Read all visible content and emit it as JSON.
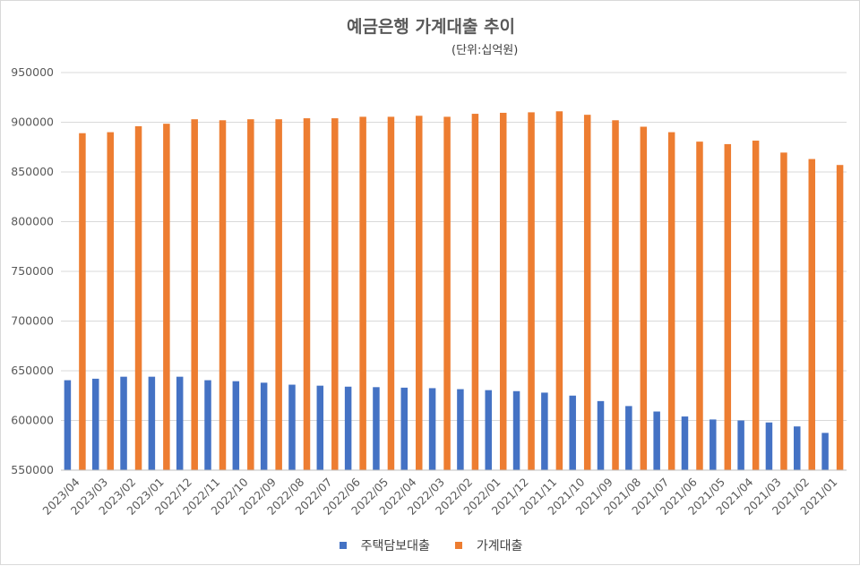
{
  "chart_data": {
    "type": "bar",
    "title": "예금은행 가계대출 추이",
    "subtitle": "(단위:십억원)",
    "categories": [
      "2023/04",
      "2023/03",
      "2023/02",
      "2023/01",
      "2022/12",
      "2022/11",
      "2022/10",
      "2022/09",
      "2022/08",
      "2022/07",
      "2022/06",
      "2022/05",
      "2022/04",
      "2022/03",
      "2022/02",
      "2022/01",
      "2021/12",
      "2021/11",
      "2021/10",
      "2021/09",
      "2021/08",
      "2021/07",
      "2021/06",
      "2021/05",
      "2021/04",
      "2021/03",
      "2021/02",
      "2021/01"
    ],
    "series": [
      {
        "name": "주택담보대출",
        "color": "#4472c4",
        "values": [
          640500,
          642000,
          644000,
          644000,
          644000,
          640500,
          639500,
          638000,
          636000,
          635000,
          634000,
          633500,
          633000,
          632500,
          631500,
          630500,
          629500,
          628000,
          625000,
          619500,
          614500,
          609000,
          604000,
          601000,
          600000,
          598000,
          594000,
          587500
        ]
      },
      {
        "name": "가계대출",
        "color": "#ed7d31",
        "values": [
          889000,
          890000,
          896000,
          898500,
          903000,
          902000,
          903000,
          903000,
          904000,
          904000,
          905500,
          905500,
          906500,
          905500,
          908500,
          909500,
          910000,
          911000,
          907500,
          902000,
          895500,
          890000,
          880500,
          878000,
          881500,
          869500,
          863000,
          857000
        ]
      }
    ],
    "y_ticks": [
      "550000",
      "600000",
      "650000",
      "700000",
      "750000",
      "800000",
      "850000",
      "900000",
      "950000"
    ],
    "ylim": [
      550000,
      950000
    ],
    "grid": true,
    "legend": "bottom"
  }
}
